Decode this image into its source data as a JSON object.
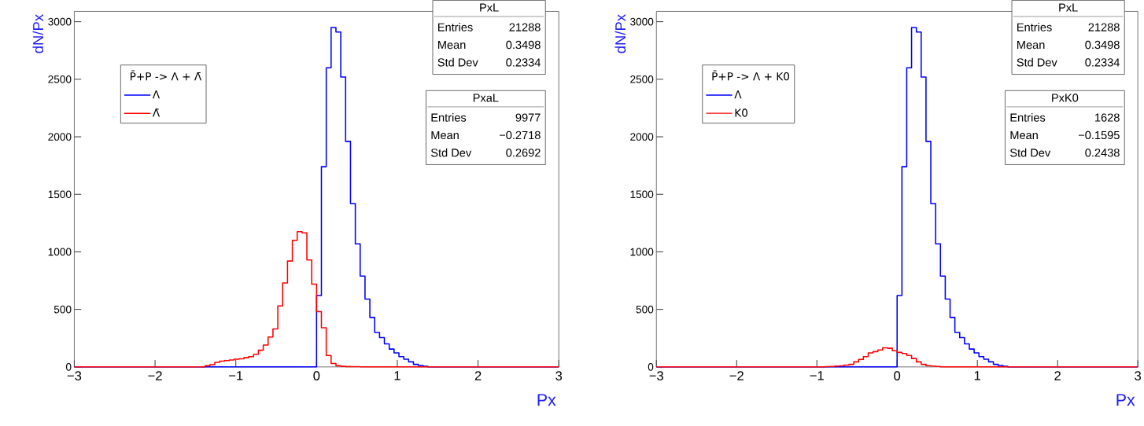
{
  "chart_data": [
    {
      "type": "histogram",
      "xlabel": "Px",
      "ylabel": "dN/Px",
      "legend_title": "P̄+P -> Λ + Λ̄",
      "legend": "top left",
      "xlim": [
        -3,
        3
      ],
      "ylim": [
        0,
        3090
      ],
      "xticks": [
        {
          "value": -3,
          "label": "−3"
        },
        {
          "value": -2,
          "label": "−2"
        },
        {
          "value": -1,
          "label": "−1"
        },
        0,
        1,
        2,
        3
      ],
      "yticks": [
        0,
        500,
        1000,
        1500,
        2000,
        2500,
        3000
      ],
      "bins": [
        -3,
        -2.94,
        -2.88,
        -2.82,
        -2.76,
        -2.7,
        -2.64,
        -2.58,
        -2.52,
        -2.46,
        -2.4,
        -2.34,
        -2.28,
        -2.22,
        -2.16,
        -2.1,
        -2.04,
        -1.98,
        -1.92,
        -1.86,
        -1.8,
        -1.74,
        -1.68,
        -1.62,
        -1.56,
        -1.5,
        -1.44,
        -1.38,
        -1.32,
        -1.26,
        -1.2,
        -1.14,
        -1.08,
        -1.02,
        -0.96,
        -0.9,
        -0.84,
        -0.78,
        -0.72,
        -0.66,
        -0.6,
        -0.54,
        -0.48,
        -0.42,
        -0.36,
        -0.3,
        -0.24,
        -0.18,
        -0.12,
        -0.06,
        0,
        0.06,
        0.12,
        0.18,
        0.24,
        0.3,
        0.36,
        0.42,
        0.48,
        0.54,
        0.6,
        0.66,
        0.72,
        0.78,
        0.84,
        0.9,
        0.96,
        1.02,
        1.08,
        1.14,
        1.2,
        1.26,
        1.32,
        1.38,
        1.44,
        1.5,
        1.56,
        1.62,
        1.68,
        1.74,
        1.8,
        1.86,
        1.92,
        1.98,
        2.04,
        2.1,
        2.16,
        2.22,
        2.28,
        2.34,
        2.4,
        2.46,
        2.52,
        2.58,
        2.64,
        2.7,
        2.76,
        2.82,
        2.88,
        2.94,
        3
      ],
      "series": [
        {
          "name": "Λ",
          "color": "#0000ff",
          "values": [
            0,
            0,
            0,
            0,
            0,
            0,
            0,
            0,
            0,
            0,
            0,
            0,
            0,
            0,
            0,
            0,
            0,
            0,
            0,
            0,
            0,
            0,
            0,
            0,
            0,
            0,
            0,
            0,
            0,
            0,
            0,
            0,
            0,
            0,
            0,
            0,
            0,
            0,
            0,
            0,
            0,
            0,
            0,
            0,
            0,
            0,
            0,
            0,
            0,
            0,
            620,
            1740,
            2600,
            2950,
            2910,
            2520,
            1960,
            1420,
            1070,
            790,
            590,
            430,
            300,
            255,
            200,
            155,
            122,
            89,
            67,
            44,
            22,
            12,
            5,
            0,
            0,
            0,
            0,
            0,
            0,
            0,
            0,
            0,
            0,
            0,
            0,
            0,
            0,
            0,
            0,
            0,
            0,
            0,
            0,
            0,
            0,
            0,
            0,
            0,
            0,
            0
          ]
        },
        {
          "name": "Λ̄",
          "color": "#ff0000",
          "values": [
            0,
            0,
            0,
            0,
            0,
            0,
            0,
            0,
            0,
            0,
            0,
            0,
            0,
            0,
            0,
            0,
            0,
            0,
            0,
            0,
            0,
            0,
            0,
            0,
            0,
            0,
            0,
            10,
            20,
            40,
            50,
            55,
            60,
            67,
            70,
            80,
            90,
            110,
            145,
            190,
            260,
            330,
            530,
            730,
            920,
            1100,
            1175,
            1165,
            930,
            720,
            480,
            340,
            100,
            30,
            10,
            5,
            3,
            2,
            2,
            1,
            0,
            0,
            0,
            0,
            0,
            0,
            0,
            0,
            0,
            0,
            0,
            0,
            0,
            0,
            0,
            0,
            0,
            0,
            0,
            0,
            0,
            0,
            0,
            0,
            0,
            0,
            0,
            0,
            0,
            0,
            0,
            0,
            0,
            0,
            0,
            0,
            0,
            0,
            0,
            0
          ]
        }
      ],
      "annotations": [
        "PxL",
        "Entries",
        "21288",
        "Mean",
        "0.3498",
        "Std Dev",
        "0.2334",
        "PxaL",
        "Entries",
        "9977",
        "Mean",
        "−0.2718",
        "Std Dev",
        "0.2692"
      ]
    },
    {
      "type": "histogram",
      "xlabel": "Px",
      "ylabel": "dN/Px",
      "legend_title": "P̄+P -> Λ + K0",
      "legend": "top left",
      "xlim": [
        -3,
        3
      ],
      "ylim": [
        0,
        3090
      ],
      "xticks": [
        {
          "value": -3,
          "label": "−3"
        },
        {
          "value": -2,
          "label": "−2"
        },
        {
          "value": -1,
          "label": "−1"
        },
        0,
        1,
        2,
        3
      ],
      "yticks": [
        0,
        500,
        1000,
        1500,
        2000,
        2500,
        3000
      ],
      "bins": [
        -3,
        -2.94,
        -2.88,
        -2.82,
        -2.76,
        -2.7,
        -2.64,
        -2.58,
        -2.52,
        -2.46,
        -2.4,
        -2.34,
        -2.28,
        -2.22,
        -2.16,
        -2.1,
        -2.04,
        -1.98,
        -1.92,
        -1.86,
        -1.8,
        -1.74,
        -1.68,
        -1.62,
        -1.56,
        -1.5,
        -1.44,
        -1.38,
        -1.32,
        -1.26,
        -1.2,
        -1.14,
        -1.08,
        -1.02,
        -0.96,
        -0.9,
        -0.84,
        -0.78,
        -0.72,
        -0.66,
        -0.6,
        -0.54,
        -0.48,
        -0.42,
        -0.36,
        -0.3,
        -0.24,
        -0.18,
        -0.12,
        -0.06,
        0,
        0.06,
        0.12,
        0.18,
        0.24,
        0.3,
        0.36,
        0.42,
        0.48,
        0.54,
        0.6,
        0.66,
        0.72,
        0.78,
        0.84,
        0.9,
        0.96,
        1.02,
        1.08,
        1.14,
        1.2,
        1.26,
        1.32,
        1.38,
        1.44,
        1.5,
        1.56,
        1.62,
        1.68,
        1.74,
        1.8,
        1.86,
        1.92,
        1.98,
        2.04,
        2.1,
        2.16,
        2.22,
        2.28,
        2.34,
        2.4,
        2.46,
        2.52,
        2.58,
        2.64,
        2.7,
        2.76,
        2.82,
        2.88,
        2.94,
        3
      ],
      "series": [
        {
          "name": "Λ",
          "color": "#0000ff",
          "values": [
            0,
            0,
            0,
            0,
            0,
            0,
            0,
            0,
            0,
            0,
            0,
            0,
            0,
            0,
            0,
            0,
            0,
            0,
            0,
            0,
            0,
            0,
            0,
            0,
            0,
            0,
            0,
            0,
            0,
            0,
            0,
            0,
            0,
            0,
            0,
            0,
            0,
            0,
            0,
            0,
            0,
            0,
            0,
            0,
            0,
            0,
            0,
            0,
            0,
            0,
            620,
            1740,
            2600,
            2950,
            2910,
            2520,
            1960,
            1420,
            1070,
            790,
            590,
            430,
            300,
            255,
            200,
            155,
            122,
            89,
            67,
            44,
            22,
            12,
            5,
            0,
            0,
            0,
            0,
            0,
            0,
            0,
            0,
            0,
            0,
            0,
            0,
            0,
            0,
            0,
            0,
            0,
            0,
            0,
            0,
            0,
            0,
            0,
            0,
            0,
            0,
            0
          ]
        },
        {
          "name": "K0",
          "color": "#ff0000",
          "values": [
            0,
            0,
            0,
            0,
            0,
            0,
            0,
            0,
            0,
            0,
            0,
            0,
            0,
            0,
            0,
            0,
            0,
            0,
            0,
            0,
            0,
            0,
            0,
            0,
            0,
            0,
            0,
            0,
            0,
            0,
            0,
            0,
            0,
            0,
            0,
            2,
            4,
            7,
            9,
            16,
            22,
            44,
            66,
            89,
            122,
            133,
            148,
            166,
            162,
            140,
            126,
            117,
            100,
            73,
            44,
            22,
            11,
            7,
            4,
            0,
            0,
            0,
            0,
            0,
            0,
            0,
            0,
            0,
            0,
            0,
            0,
            0,
            0,
            0,
            0,
            0,
            0,
            0,
            0,
            0,
            0,
            0,
            0,
            0,
            0,
            0,
            0,
            0,
            0,
            0,
            0,
            0,
            0,
            0,
            0,
            0,
            0,
            0,
            0,
            0
          ]
        }
      ],
      "annotations": [
        "PxL",
        "Entries",
        "21288",
        "Mean",
        "0.3498",
        "Std Dev",
        "0.2334",
        "PxK0",
        "Entries",
        "1628",
        "Mean",
        "−0.1595",
        "Std Dev",
        "0.2438"
      ]
    }
  ]
}
